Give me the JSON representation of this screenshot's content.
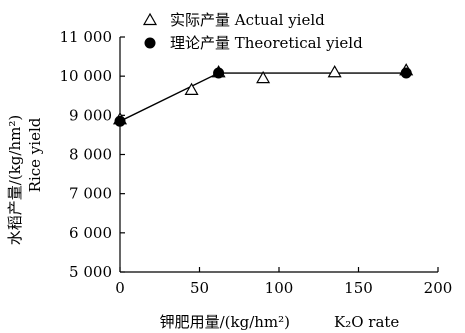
{
  "chart_data": {
    "type": "line",
    "x_range": [
      0,
      200
    ],
    "y_range": [
      5000,
      11000
    ],
    "x_ticks": [
      0,
      50,
      100,
      150,
      200
    ],
    "y_ticks": [
      5000,
      6000,
      7000,
      8000,
      9000,
      10000,
      11000
    ],
    "y_tick_labels": [
      "5 000",
      "6 000",
      "7 000",
      "8 000",
      "9 000",
      "10 000",
      "11 000"
    ],
    "x_tick_labels": [
      "0",
      "50",
      "100",
      "150",
      "200"
    ],
    "xlabel_cn": "钾肥用量/(kg/hm²)",
    "xlabel_en": "K₂O rate",
    "ylabel_cn": "水稻产量/(kg/hm²)",
    "ylabel_en": "Rice yield",
    "grid": false,
    "legend_position": "top-left",
    "series": [
      {
        "name": "实际产量  Actual yield",
        "marker": "open-triangle",
        "points": [
          {
            "x": 0,
            "y": 8900
          },
          {
            "x": 45,
            "y": 9650
          },
          {
            "x": 62,
            "y": 10100
          },
          {
            "x": 90,
            "y": 9950
          },
          {
            "x": 135,
            "y": 10100
          },
          {
            "x": 180,
            "y": 10150
          }
        ]
      },
      {
        "name": "理论产量  Theoretical yield",
        "marker": "filled-circle",
        "points": [
          {
            "x": 0,
            "y": 8850
          },
          {
            "x": 62,
            "y": 10080
          },
          {
            "x": 180,
            "y": 10080
          }
        ]
      }
    ],
    "fit_line": {
      "points": [
        {
          "x": 0,
          "y": 8850
        },
        {
          "x": 62,
          "y": 10080
        },
        {
          "x": 180,
          "y": 10080
        }
      ]
    }
  }
}
